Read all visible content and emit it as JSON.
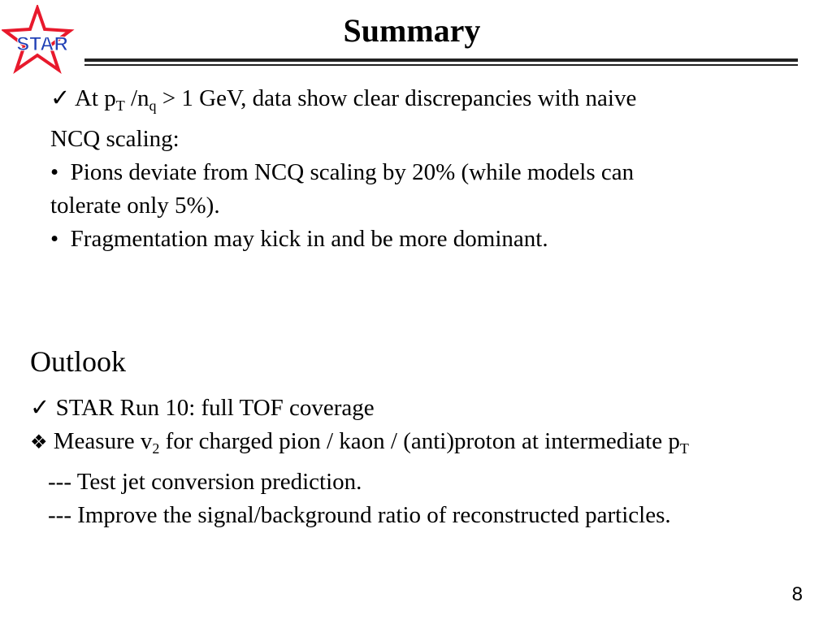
{
  "logo": {
    "text": "STAR",
    "star_color": "#e8192c",
    "text_color": "#1f3fb5"
  },
  "title": "Summary",
  "summary": {
    "line1_mark": "✓",
    "line1_a": "At p",
    "line1_sub1": "T",
    "line1_b": " /n",
    "line1_sub2": "q",
    "line1_c": " > 1 GeV, data show clear discrepancies with naive",
    "line2": "NCQ scaling:",
    "bullet1_mark": "•",
    "bullet1": "Pions deviate from NCQ scaling by 20% (while models can",
    "bullet1_cont": "tolerate only 5%).",
    "bullet2_mark": "•",
    "bullet2": "Fragmentation may kick in and be more dominant."
  },
  "outlook": {
    "title": "Outlook",
    "item1_mark": "✓",
    "item1": "STAR Run 10: full TOF coverage",
    "item2_mark": "❖",
    "item2_a": "Measure v",
    "item2_sub1": "2",
    "item2_b": " for charged pion / kaon / (anti)proton at intermediate p",
    "item2_sub2": "T",
    "sub1": "--- Test jet conversion prediction.",
    "sub2": "--- Improve the signal/background ratio of reconstructed particles."
  },
  "page_number": "8"
}
